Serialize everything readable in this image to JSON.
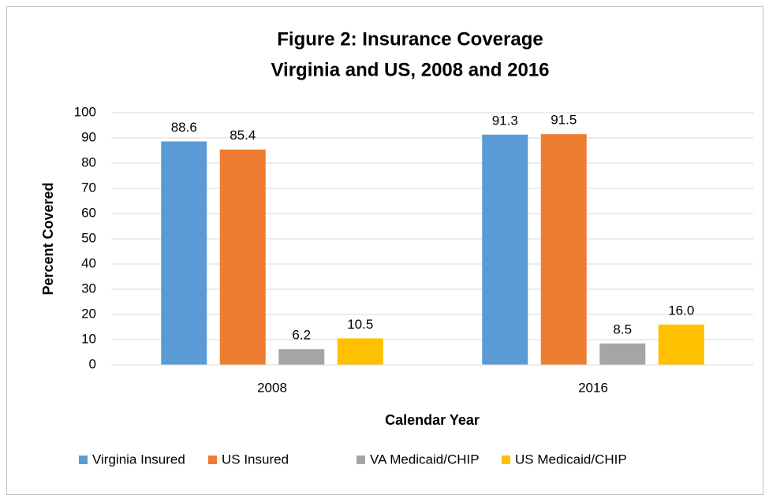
{
  "chart_data": {
    "type": "bar",
    "title": [
      "Figure 2:  Insurance Coverage",
      "Virginia and US, 2008 and 2016"
    ],
    "x_label": "Calendar Year",
    "y_label": "Percent Covered",
    "categories": [
      "2008",
      "2016"
    ],
    "series": [
      {
        "name": "Virginia Insured",
        "color": "#5b9bd5",
        "values": [
          88.6,
          91.3
        ],
        "value_labels": [
          "88.6",
          "91.3"
        ]
      },
      {
        "name": "US Insured",
        "color": "#ed7d31",
        "values": [
          85.4,
          91.5
        ],
        "value_labels": [
          "85.4",
          "91.5"
        ]
      },
      {
        "name": "VA Medicaid/CHIP",
        "color": "#a5a5a5",
        "values": [
          6.2,
          8.5
        ],
        "value_labels": [
          "6.2",
          "8.5"
        ]
      },
      {
        "name": "US Medicaid/CHIP",
        "color": "#ffc000",
        "values": [
          10.5,
          16.0
        ],
        "value_labels": [
          "10.5",
          "16.0"
        ]
      }
    ],
    "ylim": [
      0,
      100
    ],
    "yticks": [
      0,
      10,
      20,
      30,
      40,
      50,
      60,
      70,
      80,
      90,
      100
    ],
    "grid": true,
    "legend": "bottom"
  }
}
